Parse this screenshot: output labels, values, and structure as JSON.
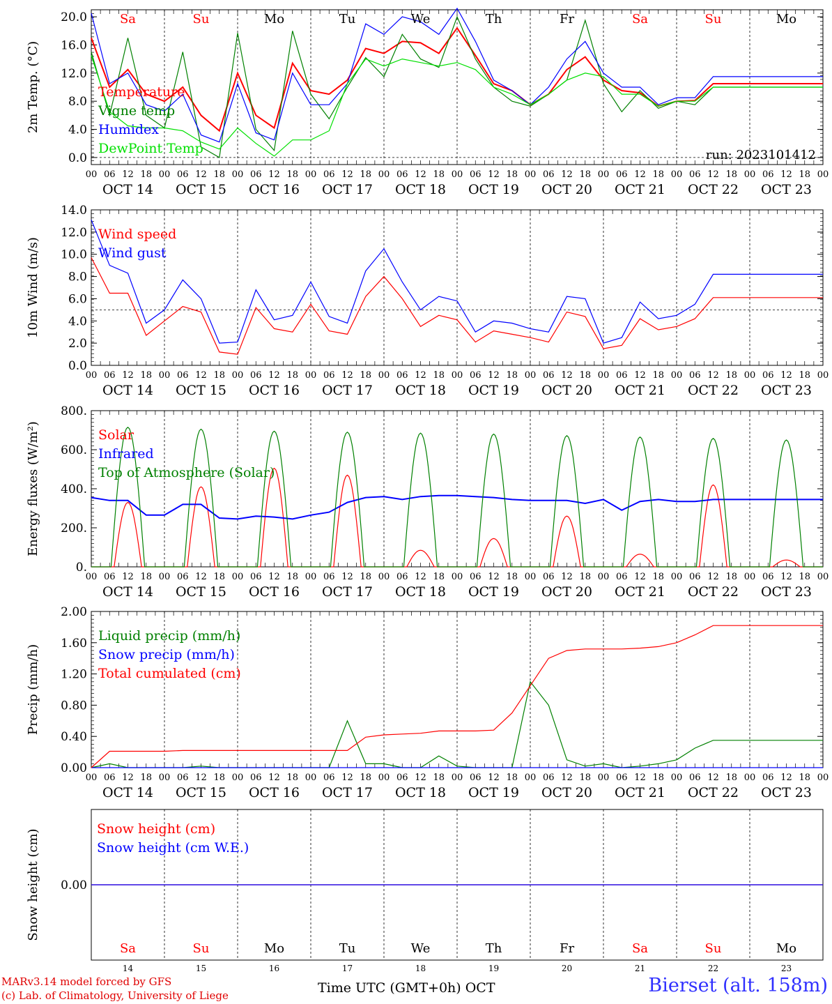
{
  "chart_data": [
    {
      "type": "line",
      "ylabel": "2m Temp. (°C)",
      "ylim": [
        -1,
        21
      ],
      "yticks": [
        "0.0",
        "4.0",
        "8.0",
        "12.0",
        "16.0",
        "20.0"
      ],
      "hline": 0,
      "run_label": "run: 2023101412",
      "x_hours": [
        0,
        6,
        12,
        18,
        24,
        30,
        36,
        42,
        48,
        54,
        60,
        66,
        72,
        78,
        84,
        90,
        96,
        102,
        108,
        114,
        120,
        126,
        132,
        138,
        144,
        150,
        156,
        162,
        168,
        174,
        180,
        186,
        192,
        198,
        204,
        210,
        216,
        222,
        228,
        234,
        240
      ],
      "series": [
        {
          "name": "Temperature",
          "color": "#ff0000",
          "values": [
            17,
            10,
            12.5,
            9,
            8,
            10,
            6,
            3.8,
            12,
            6,
            4.2,
            13.4,
            9.5,
            9,
            11,
            15.5,
            14.8,
            16.5,
            16.3,
            14.8,
            18.4,
            14.5,
            10.5,
            9.5,
            7.5,
            9,
            12.5,
            14.3,
            11,
            9.5,
            9.2,
            7.3,
            8,
            8.1,
            10.5,
            10.5,
            10.5,
            10.5,
            10.5,
            10.5,
            10.5
          ]
        },
        {
          "name": "Vigne temp",
          "color": "#008000",
          "values": [
            15,
            6,
            17,
            6,
            4.2,
            15,
            1.5,
            0,
            17.7,
            4,
            1,
            18,
            9,
            5.5,
            10,
            14.2,
            11.5,
            17.5,
            14,
            12.8,
            20,
            14,
            10,
            8,
            7.3,
            9,
            11,
            19.5,
            10.5,
            6.5,
            9.5,
            7,
            8,
            7.5,
            10,
            10,
            10,
            10,
            10,
            10,
            10
          ]
        },
        {
          "name": "Humidex",
          "color": "#0000ff",
          "values": [
            20.5,
            10.5,
            12,
            7.5,
            6.6,
            9,
            3.2,
            2.2,
            10.5,
            3.5,
            2.5,
            12,
            7.5,
            7.5,
            10.5,
            19,
            17.5,
            20,
            19.3,
            17.5,
            21.2,
            16.5,
            11,
            9.5,
            7.5,
            10,
            14,
            16.5,
            12,
            10,
            10,
            7.5,
            8.5,
            8.5,
            11.5,
            11.5,
            11.5,
            11.5,
            11.5,
            11.5,
            11.5
          ]
        },
        {
          "name": "DewPoint Temp",
          "color": "#00e000",
          "values": [
            14.5,
            6.5,
            4.5,
            4.2,
            4.2,
            3.8,
            2.2,
            1.2,
            4.2,
            2,
            0.2,
            2.5,
            2.5,
            3.8,
            10.5,
            14,
            13,
            14,
            13.5,
            13,
            13.5,
            12.5,
            10,
            9,
            7.5,
            9,
            11,
            12,
            11.5,
            9,
            9,
            7.3,
            8,
            8,
            10,
            10,
            10,
            10,
            10,
            10,
            10
          ]
        }
      ]
    },
    {
      "type": "line",
      "ylabel": "10m Wind (m/s)",
      "ylim": [
        0,
        14
      ],
      "yticks": [
        "0.0",
        "2.0",
        "4.0",
        "6.0",
        "8.0",
        "10.0",
        "12.0",
        "14.0"
      ],
      "hline": 5,
      "x_hours": [
        0,
        6,
        12,
        18,
        24,
        30,
        36,
        42,
        48,
        54,
        60,
        66,
        72,
        78,
        84,
        90,
        96,
        102,
        108,
        114,
        120,
        126,
        132,
        138,
        144,
        150,
        156,
        162,
        168,
        174,
        180,
        186,
        192,
        198,
        204,
        210,
        216,
        222,
        228,
        234,
        240
      ],
      "series": [
        {
          "name": "Wind speed",
          "color": "#ff0000",
          "values": [
            9.7,
            6.5,
            6.5,
            2.7,
            4,
            5.3,
            4.8,
            1.2,
            1,
            5.2,
            3.3,
            3,
            5.5,
            3.1,
            2.8,
            6.2,
            8,
            6,
            3.5,
            4.5,
            4.1,
            2.1,
            3.1,
            2.8,
            2.5,
            2.1,
            4.8,
            4.4,
            1.5,
            1.8,
            4.2,
            3.2,
            3.5,
            4.2,
            6.1,
            6.1,
            6.1,
            6.1,
            6.1,
            6.1,
            6.1
          ]
        },
        {
          "name": "Wind gust",
          "color": "#0000ff",
          "values": [
            13.1,
            9,
            8.3,
            3.8,
            5,
            7.7,
            6,
            2,
            2.1,
            6.8,
            4.1,
            4.5,
            7.5,
            4.4,
            3.8,
            8.5,
            10.5,
            7.5,
            5,
            6.2,
            5.8,
            3,
            4,
            3.8,
            3.3,
            3,
            6.2,
            6,
            2,
            2.5,
            5.7,
            4.2,
            4.5,
            5.5,
            8.2,
            8.2,
            8.2,
            8.2,
            8.2,
            8.2,
            8.2
          ]
        }
      ]
    },
    {
      "type": "line",
      "ylabel": "Energy fluxes (W/m²)",
      "ylim": [
        0,
        800
      ],
      "yticks": [
        "0.",
        "200.",
        "400.",
        "600.",
        "800."
      ],
      "x_hours": [
        0,
        6,
        12,
        18,
        24,
        30,
        36,
        42,
        48,
        54,
        60,
        66,
        72,
        78,
        84,
        90,
        96,
        102,
        108,
        114,
        120,
        126,
        132,
        138,
        144,
        150,
        156,
        162,
        168,
        174,
        180,
        186,
        192,
        198,
        204,
        210,
        216,
        222,
        228,
        234,
        240
      ],
      "series": [
        {
          "name": "Solar",
          "color": "#ff0000",
          "day_peaks": [
            330,
            410,
            505,
            470,
            85,
            145,
            260,
            65,
            420,
            35
          ]
        },
        {
          "name": "Infrared",
          "color": "#0000ff",
          "values": [
            355,
            340,
            340,
            265,
            265,
            320,
            320,
            250,
            245,
            260,
            255,
            245,
            265,
            280,
            330,
            355,
            360,
            345,
            360,
            365,
            365,
            360,
            355,
            345,
            340,
            340,
            340,
            325,
            345,
            290,
            335,
            345,
            335,
            335,
            345,
            345,
            345,
            345,
            345,
            345,
            345
          ]
        },
        {
          "name": "Top of Atmosphere (Solar)",
          "color": "#008000",
          "day_peaks": [
            715,
            705,
            695,
            690,
            685,
            680,
            672,
            665,
            658,
            650
          ]
        }
      ]
    },
    {
      "type": "line",
      "ylabel": "Precip (mm/h)",
      "ylim": [
        0,
        2
      ],
      "yticks": [
        "0.00",
        "0.40",
        "0.80",
        "1.20",
        "1.60",
        "2.00"
      ],
      "x_hours": [
        0,
        6,
        12,
        18,
        24,
        30,
        36,
        42,
        48,
        54,
        60,
        66,
        72,
        78,
        84,
        90,
        96,
        102,
        108,
        114,
        120,
        126,
        132,
        138,
        144,
        150,
        156,
        162,
        168,
        174,
        180,
        186,
        192,
        198,
        204,
        210,
        216,
        222,
        228,
        234,
        240
      ],
      "series": [
        {
          "name": "Liquid precip (mm/h)",
          "color": "#008000",
          "values": [
            0,
            0.05,
            0,
            0,
            0,
            0,
            0.02,
            0,
            0,
            0,
            0,
            0,
            0,
            0,
            0.6,
            0.05,
            0.05,
            0,
            0,
            0.15,
            0.02,
            0,
            0,
            0,
            1.1,
            0.8,
            0.1,
            0.02,
            0.05,
            0,
            0.02,
            0.05,
            0.1,
            0.25,
            0.35,
            0.35,
            0.35,
            0.35,
            0.35,
            0.35,
            0.35
          ]
        },
        {
          "name": "Snow precip (mm/h)",
          "color": "#0000ff",
          "values": [
            0,
            0,
            0,
            0,
            0,
            0,
            0,
            0,
            0,
            0,
            0,
            0,
            0,
            0,
            0,
            0,
            0,
            0,
            0,
            0,
            0,
            0,
            0,
            0,
            0,
            0,
            0,
            0,
            0,
            0,
            0,
            0,
            0,
            0,
            0,
            0,
            0,
            0,
            0,
            0,
            0
          ]
        },
        {
          "name": "Total cumulated (cm)",
          "color": "#ff0000",
          "values": [
            0,
            0.21,
            0.21,
            0.21,
            0.21,
            0.22,
            0.22,
            0.22,
            0.22,
            0.22,
            0.22,
            0.22,
            0.22,
            0.22,
            0.22,
            0.39,
            0.42,
            0.43,
            0.44,
            0.47,
            0.47,
            0.47,
            0.48,
            0.7,
            1.05,
            1.4,
            1.5,
            1.52,
            1.52,
            1.52,
            1.53,
            1.55,
            1.6,
            1.7,
            1.82,
            1.82,
            1.82,
            1.82,
            1.82,
            1.82,
            1.82
          ]
        }
      ]
    },
    {
      "type": "line",
      "ylabel": "Snow height (cm)",
      "ylim": [
        -1,
        1
      ],
      "yticks": [
        "0.00"
      ],
      "x_hours": [
        0,
        240
      ],
      "series": [
        {
          "name": "Snow height (cm)",
          "color": "#ff0000",
          "values": [
            0,
            0
          ]
        },
        {
          "name": "Snow height (cm W.E.)",
          "color": "#0000ff",
          "values": [
            0,
            0
          ]
        }
      ]
    }
  ],
  "hour_ticks": [
    "00",
    "06",
    "12",
    "18"
  ],
  "dates": [
    "OCT 14",
    "OCT 15",
    "OCT 16",
    "OCT 17",
    "OCT 18",
    "OCT 19",
    "OCT 20",
    "OCT 21",
    "OCT 22",
    "OCT 23"
  ],
  "weekdays": [
    "Sa",
    "Su",
    "Mo",
    "Tu",
    "We",
    "Th",
    "Fr",
    "Sa",
    "Su",
    "Mo"
  ],
  "weekday_colors": [
    "#ff0000",
    "#ff0000",
    "#000000",
    "#000000",
    "#000000",
    "#000000",
    "#000000",
    "#ff0000",
    "#ff0000",
    "#000000"
  ],
  "day_numbers": [
    "14",
    "15",
    "16",
    "17",
    "18",
    "19",
    "20",
    "21",
    "22",
    "23"
  ],
  "footer": {
    "model_line1": "MARv3.14 model forced by GFS",
    "model_line2": "(c) Lab. of Climatology, University of Liege",
    "xaxis_title": "Time UTC (GMT+0h) OCT",
    "station": "Bierset (alt. 158m)"
  }
}
